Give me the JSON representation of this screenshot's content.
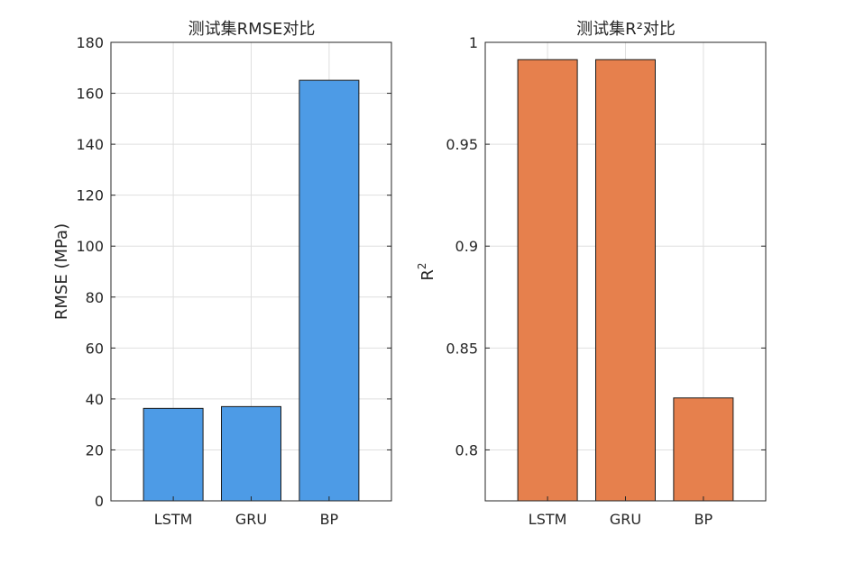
{
  "chart_data": [
    {
      "type": "bar",
      "title": "测试集RMSE对比",
      "xlabel": "",
      "ylabel": "RMSE (MPa)",
      "categories": [
        "LSTM",
        "GRU",
        "BP"
      ],
      "values": [
        36.3,
        37.0,
        165.1
      ],
      "ylim": [
        0,
        180
      ],
      "yticks": [
        0,
        20,
        40,
        60,
        80,
        100,
        120,
        140,
        160,
        180
      ],
      "grid": true,
      "color": "#4d9be6"
    },
    {
      "type": "bar",
      "title": "测试集R²对比",
      "xlabel": "",
      "ylabel": "R²",
      "ylabel_base": "R",
      "ylabel_sup": "2",
      "categories": [
        "LSTM",
        "GRU",
        "BP"
      ],
      "values": [
        0.9915,
        0.9915,
        0.8255
      ],
      "ylim": [
        0.775,
        1.0
      ],
      "yticks": [
        0.8,
        0.85,
        0.9,
        0.95,
        1
      ],
      "ytick_labels": [
        "0.8",
        "0.85",
        "0.9",
        "0.95",
        "1"
      ],
      "grid": true,
      "color": "#e6804d"
    }
  ]
}
